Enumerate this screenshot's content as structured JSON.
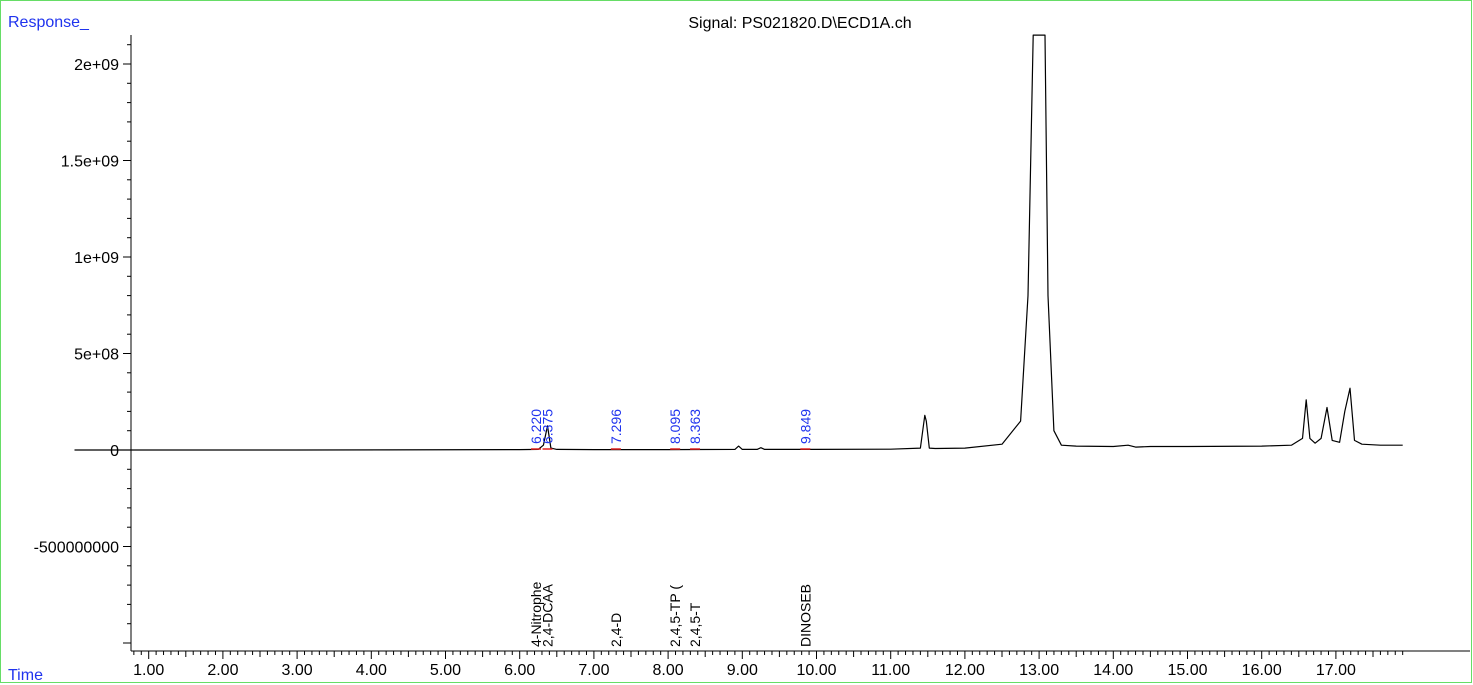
{
  "chart_data": {
    "type": "line",
    "title": "Signal: PS021820.D\\ECD1A.ch",
    "ylabel": "Response_",
    "xlabel": "Time",
    "xlim": [
      0,
      17.9
    ],
    "ylim": [
      -1000000000,
      2150000000
    ],
    "x_ticks": [
      {
        "value": 1,
        "label": "1.00"
      },
      {
        "value": 2,
        "label": "2.00"
      },
      {
        "value": 3,
        "label": "3.00"
      },
      {
        "value": 4,
        "label": "4.00"
      },
      {
        "value": 5,
        "label": "5.00"
      },
      {
        "value": 6,
        "label": "6.00"
      },
      {
        "value": 7,
        "label": "7.00"
      },
      {
        "value": 8,
        "label": "8.00"
      },
      {
        "value": 9,
        "label": "9.00"
      },
      {
        "value": 10,
        "label": "10.00"
      },
      {
        "value": 11,
        "label": "11.00"
      },
      {
        "value": 12,
        "label": "12.00"
      },
      {
        "value": 13,
        "label": "13.00"
      },
      {
        "value": 14,
        "label": "14.00"
      },
      {
        "value": 15,
        "label": "15.00"
      },
      {
        "value": 16,
        "label": "16.00"
      },
      {
        "value": 17,
        "label": "17.00"
      }
    ],
    "y_ticks": [
      {
        "value": 2000000000,
        "label": "2e+09"
      },
      {
        "value": 1500000000,
        "label": "1.5e+09"
      },
      {
        "value": 1000000000,
        "label": "1e+09"
      },
      {
        "value": 500000000,
        "label": "5e+08"
      },
      {
        "value": 0,
        "label": "0"
      },
      {
        "value": -500000000,
        "label": "-500000000"
      }
    ],
    "series": [
      {
        "color": "#000000",
        "x": [
          0.0,
          3.0,
          6.0,
          6.25,
          6.32,
          6.375,
          6.42,
          6.5,
          7.0,
          8.0,
          8.9,
          8.95,
          9.0,
          9.2,
          9.25,
          9.3,
          10.0,
          11.0,
          11.4,
          11.46,
          11.48,
          11.52,
          11.6,
          12.0,
          12.5,
          12.75,
          12.85,
          12.92,
          12.96,
          13.0,
          13.04,
          13.08,
          13.12,
          13.2,
          13.3,
          13.5,
          14.0,
          14.2,
          14.3,
          14.5,
          15.0,
          16.0,
          16.4,
          16.55,
          16.6,
          16.65,
          16.72,
          16.8,
          16.88,
          16.95,
          17.05,
          17.12,
          17.19,
          17.25,
          17.35,
          17.6,
          17.9
        ],
        "y": [
          0,
          0,
          2000000,
          3000000,
          25000000,
          125000000,
          10000000,
          3000000,
          2000000,
          2000000,
          3000000,
          20000000,
          3000000,
          3000000,
          12000000,
          3000000,
          3000000,
          4000000,
          10000000,
          180000000,
          150000000,
          10000000,
          8000000,
          10000000,
          30000000,
          150000000,
          800000000,
          2150000000,
          2150000000,
          2150000000,
          2150000000,
          2150000000,
          800000000,
          100000000,
          25000000,
          20000000,
          18000000,
          25000000,
          15000000,
          18000000,
          18000000,
          20000000,
          25000000,
          60000000,
          260000000,
          60000000,
          35000000,
          60000000,
          220000000,
          50000000,
          40000000,
          200000000,
          320000000,
          50000000,
          30000000,
          25000000,
          25000000
        ]
      }
    ],
    "peak_labels": [
      {
        "time": 6.22,
        "label": "6.220"
      },
      {
        "time": 6.375,
        "label": "6.375"
      },
      {
        "time": 7.296,
        "label": "7.296"
      },
      {
        "time": 8.095,
        "label": "8.095"
      },
      {
        "time": 8.363,
        "label": "8.363"
      },
      {
        "time": 9.849,
        "label": "9.849"
      }
    ],
    "compound_labels": [
      {
        "time": 6.22,
        "label": "4-Nitrophe"
      },
      {
        "time": 6.375,
        "label": "2,4-DCAA"
      },
      {
        "time": 7.296,
        "label": "2,4-D"
      },
      {
        "time": 8.095,
        "label": "2,4,5-TP ("
      },
      {
        "time": 8.363,
        "label": "2,4,5-T"
      },
      {
        "time": 9.849,
        "label": "DINOSEB"
      }
    ]
  }
}
